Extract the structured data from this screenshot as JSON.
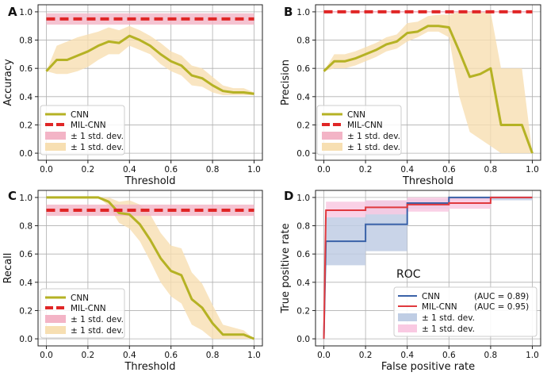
{
  "chart_data": [
    {
      "panel": "A",
      "type": "line",
      "xlabel": "Threshold",
      "ylabel": "Accuracy",
      "xlim": [
        -0.04,
        1.04
      ],
      "ylim": [
        -0.05,
        1.05
      ],
      "xticks": [
        "0.0",
        "0.2",
        "0.4",
        "0.6",
        "0.8",
        "1.0"
      ],
      "yticks": [
        "0.0",
        "0.2",
        "0.4",
        "0.6",
        "0.8",
        "1.0"
      ],
      "grid": true,
      "legend_position": "bottom-left",
      "x": [
        0,
        0.05,
        0.1,
        0.15,
        0.2,
        0.25,
        0.3,
        0.35,
        0.4,
        0.45,
        0.5,
        0.55,
        0.6,
        0.65,
        0.7,
        0.75,
        0.8,
        0.85,
        0.9,
        0.95,
        1.0
      ],
      "series": [
        {
          "name": "CNN",
          "color": "#b5b224",
          "values": [
            0.58,
            0.66,
            0.66,
            0.69,
            0.72,
            0.76,
            0.79,
            0.78,
            0.83,
            0.8,
            0.76,
            0.7,
            0.65,
            0.62,
            0.55,
            0.53,
            0.48,
            0.44,
            0.43,
            0.43,
            0.42
          ],
          "band_lower": [
            0.58,
            0.56,
            0.56,
            0.58,
            0.61,
            0.66,
            0.7,
            0.7,
            0.76,
            0.73,
            0.7,
            0.63,
            0.58,
            0.55,
            0.48,
            0.47,
            0.43,
            0.41,
            0.41,
            0.41,
            0.41
          ],
          "band_upper": [
            0.58,
            0.76,
            0.79,
            0.82,
            0.84,
            0.86,
            0.89,
            0.87,
            0.9,
            0.87,
            0.83,
            0.78,
            0.72,
            0.69,
            0.62,
            0.6,
            0.54,
            0.48,
            0.46,
            0.46,
            0.43
          ]
        },
        {
          "name": "MIL-CNN",
          "color": "#e02626",
          "style": "dashed",
          "values": [
            0.95,
            0.95,
            0.95,
            0.95,
            0.95,
            0.95,
            0.95,
            0.95,
            0.95,
            0.95,
            0.95,
            0.95,
            0.95,
            0.95,
            0.95,
            0.95,
            0.95,
            0.95,
            0.95,
            0.95,
            0.95
          ],
          "band_lower": [
            0.91,
            0.91,
            0.91,
            0.91,
            0.91,
            0.91,
            0.91,
            0.91,
            0.91,
            0.91,
            0.91,
            0.91,
            0.91,
            0.91,
            0.91,
            0.91,
            0.91,
            0.91,
            0.91,
            0.91,
            0.91
          ],
          "band_upper": [
            0.99,
            0.99,
            0.99,
            0.99,
            0.99,
            0.99,
            0.99,
            0.99,
            0.99,
            0.99,
            0.99,
            0.99,
            0.99,
            0.99,
            0.99,
            0.99,
            0.99,
            0.99,
            0.99,
            0.99,
            0.99
          ]
        }
      ],
      "legend": [
        "CNN",
        "MIL-CNN",
        "± 1 std. dev.",
        "± 1 std. dev."
      ]
    },
    {
      "panel": "B",
      "type": "line",
      "xlabel": "Threshold",
      "ylabel": "Precision",
      "xlim": [
        -0.04,
        1.04
      ],
      "ylim": [
        -0.05,
        1.05
      ],
      "xticks": [
        "0.0",
        "0.2",
        "0.4",
        "0.6",
        "0.8",
        "1.0"
      ],
      "yticks": [
        "0.0",
        "0.2",
        "0.4",
        "0.6",
        "0.8",
        "1.0"
      ],
      "grid": true,
      "legend_position": "bottom-left",
      "x": [
        0,
        0.05,
        0.1,
        0.15,
        0.2,
        0.25,
        0.3,
        0.35,
        0.4,
        0.45,
        0.5,
        0.55,
        0.6,
        0.65,
        0.7,
        0.75,
        0.8,
        0.85,
        0.9,
        0.95,
        1.0
      ],
      "series": [
        {
          "name": "CNN",
          "color": "#b5b224",
          "values": [
            0.58,
            0.65,
            0.65,
            0.67,
            0.7,
            0.73,
            0.77,
            0.79,
            0.85,
            0.86,
            0.9,
            0.9,
            0.89,
            0.72,
            0.54,
            0.56,
            0.6,
            0.2,
            0.2,
            0.2,
            0.0
          ],
          "band_lower": [
            0.58,
            0.6,
            0.6,
            0.62,
            0.65,
            0.68,
            0.72,
            0.74,
            0.79,
            0.82,
            0.86,
            0.86,
            0.82,
            0.4,
            0.15,
            0.1,
            0.05,
            0.0,
            0.0,
            0.0,
            0.0
          ],
          "band_upper": [
            0.58,
            0.7,
            0.7,
            0.72,
            0.75,
            0.78,
            0.82,
            0.84,
            0.92,
            0.93,
            0.97,
            0.98,
            0.98,
            1.0,
            1.0,
            1.0,
            1.0,
            0.6,
            0.6,
            0.6,
            0.0
          ]
        },
        {
          "name": "MIL-CNN",
          "color": "#e02626",
          "style": "dashed",
          "values": [
            1.0,
            1.0,
            1.0,
            1.0,
            1.0,
            1.0,
            1.0,
            1.0,
            1.0,
            1.0,
            1.0,
            1.0,
            1.0,
            1.0,
            1.0,
            1.0,
            1.0,
            1.0,
            1.0,
            1.0,
            1.0
          ],
          "band_lower": [
            0.995,
            0.995,
            0.995,
            0.995,
            0.995,
            0.995,
            0.995,
            0.995,
            0.995,
            0.995,
            0.995,
            0.995,
            0.995,
            0.995,
            0.995,
            0.995,
            0.995,
            0.995,
            0.995,
            0.995,
            0.995
          ],
          "band_upper": [
            1.005,
            1.005,
            1.005,
            1.005,
            1.005,
            1.005,
            1.005,
            1.005,
            1.005,
            1.005,
            1.005,
            1.005,
            1.005,
            1.005,
            1.005,
            1.005,
            1.005,
            1.005,
            1.005,
            1.005,
            1.005
          ]
        }
      ],
      "legend": [
        "CNN",
        "MIL-CNN",
        "± 1 std. dev.",
        "± 1 std. dev."
      ]
    },
    {
      "panel": "C",
      "type": "line",
      "xlabel": "Threshold",
      "ylabel": "Recall",
      "xlim": [
        -0.04,
        1.04
      ],
      "ylim": [
        -0.05,
        1.05
      ],
      "xticks": [
        "0.0",
        "0.2",
        "0.4",
        "0.6",
        "0.8",
        "1.0"
      ],
      "yticks": [
        "0.0",
        "0.2",
        "0.4",
        "0.6",
        "0.8",
        "1.0"
      ],
      "grid": true,
      "legend_position": "bottom-left",
      "x": [
        0,
        0.05,
        0.1,
        0.15,
        0.2,
        0.25,
        0.3,
        0.35,
        0.4,
        0.45,
        0.5,
        0.55,
        0.6,
        0.65,
        0.7,
        0.75,
        0.8,
        0.85,
        0.9,
        0.95,
        1.0
      ],
      "series": [
        {
          "name": "CNN",
          "color": "#b5b224",
          "values": [
            1.0,
            1.0,
            1.0,
            1.0,
            1.0,
            1.0,
            0.97,
            0.89,
            0.88,
            0.81,
            0.7,
            0.57,
            0.48,
            0.45,
            0.28,
            0.22,
            0.11,
            0.03,
            0.03,
            0.03,
            0.0
          ],
          "band_lower": [
            1.0,
            1.0,
            1.0,
            1.0,
            1.0,
            1.0,
            0.94,
            0.82,
            0.78,
            0.69,
            0.55,
            0.4,
            0.3,
            0.25,
            0.1,
            0.06,
            0.0,
            0.0,
            0.0,
            0.0,
            0.0
          ],
          "band_upper": [
            1.0,
            1.0,
            1.0,
            1.0,
            1.0,
            1.0,
            1.0,
            0.97,
            0.98,
            0.95,
            0.88,
            0.75,
            0.66,
            0.64,
            0.47,
            0.39,
            0.24,
            0.1,
            0.08,
            0.06,
            0.0
          ]
        },
        {
          "name": "MIL-CNN",
          "color": "#e02626",
          "style": "dashed",
          "values": [
            0.91,
            0.91,
            0.91,
            0.91,
            0.91,
            0.91,
            0.91,
            0.91,
            0.91,
            0.91,
            0.91,
            0.91,
            0.91,
            0.91,
            0.91,
            0.91,
            0.91,
            0.91,
            0.91,
            0.91,
            0.91
          ],
          "band_lower": [
            0.87,
            0.87,
            0.87,
            0.87,
            0.87,
            0.87,
            0.87,
            0.87,
            0.87,
            0.87,
            0.87,
            0.87,
            0.87,
            0.87,
            0.87,
            0.87,
            0.87,
            0.87,
            0.87,
            0.87,
            0.87
          ],
          "band_upper": [
            0.95,
            0.95,
            0.95,
            0.95,
            0.95,
            0.95,
            0.95,
            0.95,
            0.95,
            0.95,
            0.95,
            0.95,
            0.95,
            0.95,
            0.95,
            0.95,
            0.95,
            0.95,
            0.95,
            0.95,
            0.95
          ]
        }
      ],
      "legend": [
        "CNN",
        "MIL-CNN",
        "± 1 std. dev.",
        "± 1 std. dev."
      ]
    },
    {
      "panel": "D",
      "type": "line",
      "title": "ROC",
      "xlabel": "False positive rate",
      "ylabel": "True positive rate",
      "xlim": [
        -0.04,
        1.04
      ],
      "ylim": [
        -0.05,
        1.05
      ],
      "xticks": [
        "0.0",
        "0.2",
        "0.4",
        "0.6",
        "0.8",
        "1.0"
      ],
      "yticks": [
        "0.0",
        "0.2",
        "0.4",
        "0.6",
        "0.8",
        "1.0"
      ],
      "grid": true,
      "legend_position": "bottom-right",
      "series": [
        {
          "name": "CNN",
          "auc_label": "(AUC = 0.89)",
          "color": "#3a62a8",
          "x": [
            0,
            0.01,
            0.01,
            0.2,
            0.2,
            0.4,
            0.4,
            0.6,
            0.6,
            1.0
          ],
          "y": [
            0,
            0.69,
            0.69,
            0.69,
            0.81,
            0.81,
            0.96,
            0.96,
            1.0,
            1.0
          ],
          "band_x": [
            0.01,
            0.2,
            0.2,
            0.4,
            0.4,
            0.6,
            0.6,
            1.0
          ],
          "band_lower": [
            0.52,
            0.52,
            0.62,
            0.62,
            0.92,
            0.92,
            0.98,
            0.98
          ],
          "band_upper": [
            0.86,
            0.86,
            0.98,
            0.98,
            0.99,
            0.99,
            1.0,
            1.0
          ]
        },
        {
          "name": "MIL-CNN",
          "auc_label": "(AUC = 0.95)",
          "color": "#e0393e",
          "x": [
            0,
            0.01,
            0.01,
            0.2,
            0.2,
            0.4,
            0.4,
            0.6,
            0.6,
            0.8,
            0.8,
            1.0
          ],
          "y": [
            0,
            0.91,
            0.91,
            0.91,
            0.93,
            0.93,
            0.95,
            0.95,
            0.96,
            0.96,
            1.0,
            1.0
          ],
          "band_x": [
            0.01,
            0.2,
            0.2,
            0.4,
            0.4,
            0.6,
            0.6,
            0.8,
            0.8,
            1.0
          ],
          "band_lower": [
            0.86,
            0.86,
            0.88,
            0.88,
            0.9,
            0.9,
            0.92,
            0.92,
            1.0,
            1.0
          ],
          "band_upper": [
            0.97,
            0.97,
            0.98,
            0.98,
            1.0,
            1.0,
            1.0,
            1.0,
            1.0,
            1.0
          ]
        }
      ],
      "legend": [
        "CNN",
        "MIL-CNN",
        "± 1 std. dev.",
        "± 1 std. dev."
      ]
    }
  ]
}
